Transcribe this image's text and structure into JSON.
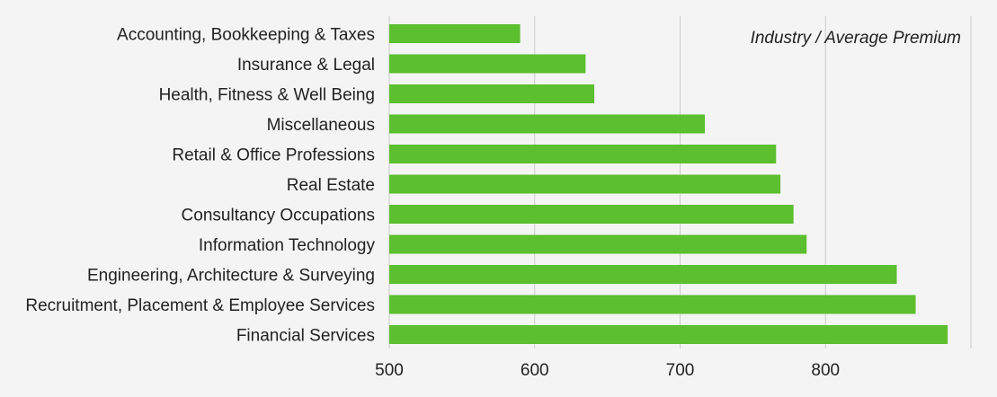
{
  "chart_data": {
    "type": "bar",
    "orientation": "horizontal",
    "title": "Industry / Average Premium",
    "categories": [
      "Accounting, Bookkeeping & Taxes",
      "Insurance & Legal",
      "Health, Fitness & Well Being",
      "Miscellaneous",
      "Retail & Office Professions",
      "Real Estate",
      "Consultancy Occupations",
      "Information Technology",
      "Engineering, Architecture & Surveying",
      "Recruitment, Placement & Employee Services",
      "Financial Services"
    ],
    "values": [
      590,
      635,
      641,
      717,
      766,
      769,
      778,
      787,
      849,
      862,
      884
    ],
    "xlim": [
      500,
      900
    ],
    "xticks": [
      500,
      600,
      700,
      800
    ],
    "grid": true,
    "colors": {
      "bar": "#5bbf2f",
      "grid": "#cccccc",
      "background": "#f4f4f4"
    }
  }
}
